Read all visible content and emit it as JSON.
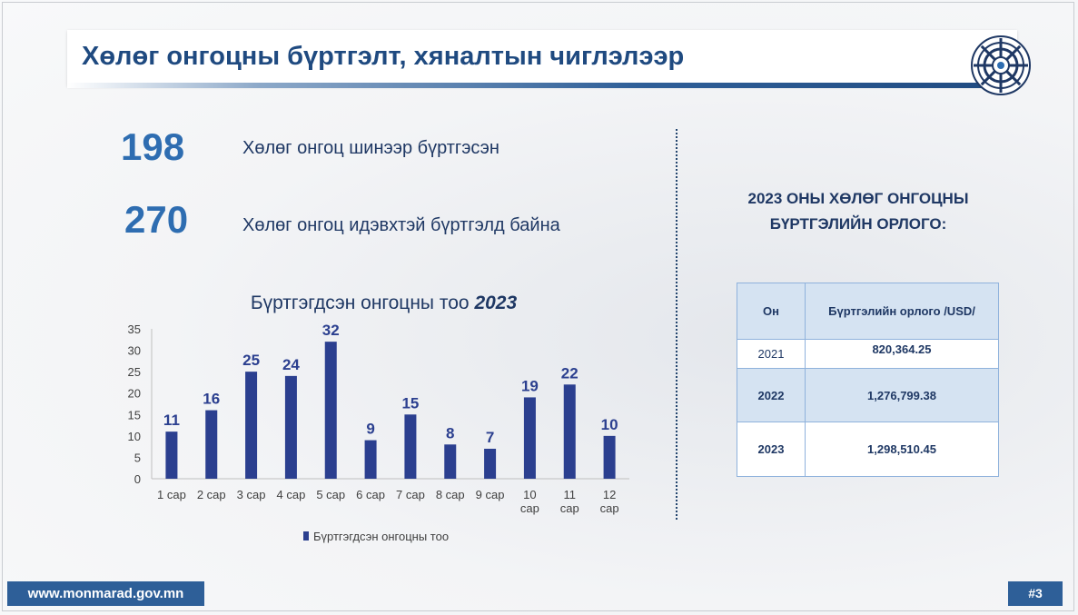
{
  "title": "Хөлөг онгоцны бүртгэлт, хяналтын чиглэлээр",
  "stats": [
    {
      "number": "198",
      "label": "Хөлөг онгоц шинээр бүртгэсэн"
    },
    {
      "number": "270",
      "label": "Хөлөг онгоц идэвхтэй бүртгэлд байна"
    }
  ],
  "income": {
    "title_line1": "2023 ОНЫ ХӨЛӨГ ОНГОЦНЫ",
    "title_line2": "БҮРТГЭЛИЙН ОРЛОГО:",
    "headers": [
      "Он",
      "Бүртгэлийн орлого /USD/"
    ],
    "rows": [
      {
        "year": "2021",
        "value": "820,364.25"
      },
      {
        "year": "2022",
        "value": "1,276,799.38"
      },
      {
        "year": "2023",
        "value": "1,298,510.45"
      }
    ]
  },
  "chart_data": {
    "type": "bar",
    "title": "Бүртгэгдсэн онгоцны тоо",
    "title_year": "2023",
    "categories": [
      "1 сар",
      "2 сар",
      "3 сар",
      "4 сар",
      "5 сар",
      "6 сар",
      "7 сар",
      "8 сар",
      "9 сар",
      "10 сар",
      "11 сар",
      "12 сар"
    ],
    "series": [
      {
        "name": "Бүртгэгдсэн онгоцны тоо",
        "values": [
          11,
          16,
          25,
          24,
          32,
          9,
          15,
          8,
          7,
          19,
          22,
          10
        ]
      }
    ],
    "yticks": [
      0,
      5,
      10,
      15,
      20,
      25,
      30,
      35
    ],
    "ylim": [
      0,
      35
    ],
    "grid": false,
    "legend_position": "bottom",
    "bar_color": "#2b3f8f",
    "label_color": "#2b3f8f"
  },
  "footer": {
    "url": "www.monmarad.gov.mn",
    "page": "#3"
  }
}
